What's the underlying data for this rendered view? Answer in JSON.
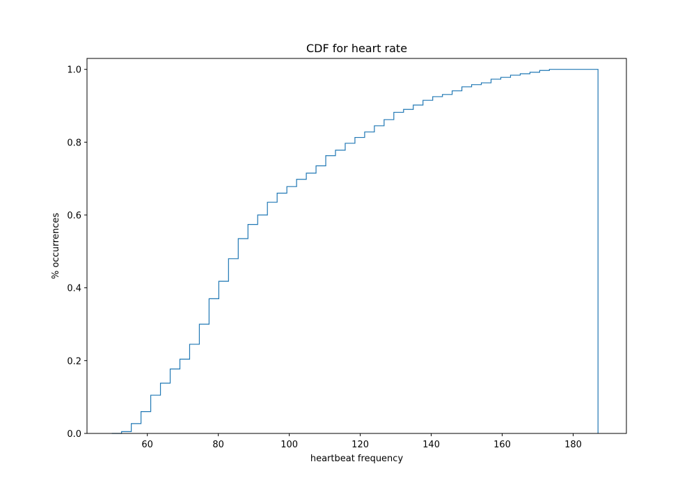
{
  "chart_data": {
    "type": "line",
    "title": "CDF for heart rate",
    "xlabel": "heartbeat frequency",
    "ylabel": "% occurrences",
    "xlim": [
      43,
      195
    ],
    "ylim": [
      0,
      1.03
    ],
    "x_ticks": [
      60,
      80,
      100,
      120,
      140,
      160,
      180
    ],
    "y_ticks": [
      0.0,
      0.2,
      0.4,
      0.6,
      0.8,
      1.0
    ],
    "x_tick_labels": [
      "60",
      "80",
      "100",
      "120",
      "140",
      "160",
      "180"
    ],
    "y_tick_labels": [
      "0.0",
      "0.2",
      "0.4",
      "0.6",
      "0.8",
      "1.0"
    ],
    "grid": false,
    "series": [
      {
        "style": "step-histogram",
        "color": "#1f77b4",
        "bin_edges": [
          50.0,
          52.74,
          55.48,
          58.22,
          60.96,
          63.7,
          66.44,
          69.18,
          71.92,
          74.66,
          77.4,
          80.14,
          82.88,
          85.62,
          88.36,
          91.1,
          93.84,
          96.58,
          99.32,
          102.06,
          104.8,
          107.54,
          110.28,
          113.02,
          115.76,
          118.5,
          121.24,
          123.98,
          126.72,
          129.46,
          132.2,
          134.94,
          137.68,
          140.42,
          143.16,
          145.9,
          148.64,
          151.38,
          154.12,
          156.86,
          159.6,
          162.34,
          165.08,
          167.82,
          170.56,
          173.3,
          176.04,
          178.78,
          181.52,
          184.26,
          187.0
        ],
        "cumulative": [
          0.0,
          0.005,
          0.027,
          0.06,
          0.105,
          0.138,
          0.177,
          0.204,
          0.245,
          0.3,
          0.37,
          0.418,
          0.48,
          0.535,
          0.574,
          0.6,
          0.635,
          0.66,
          0.678,
          0.698,
          0.715,
          0.735,
          0.763,
          0.778,
          0.797,
          0.813,
          0.828,
          0.845,
          0.862,
          0.882,
          0.89,
          0.902,
          0.915,
          0.925,
          0.931,
          0.941,
          0.952,
          0.958,
          0.963,
          0.973,
          0.978,
          0.984,
          0.988,
          0.992,
          0.997,
          1.0,
          1.0,
          1.0,
          1.0,
          1.0
        ]
      }
    ]
  }
}
